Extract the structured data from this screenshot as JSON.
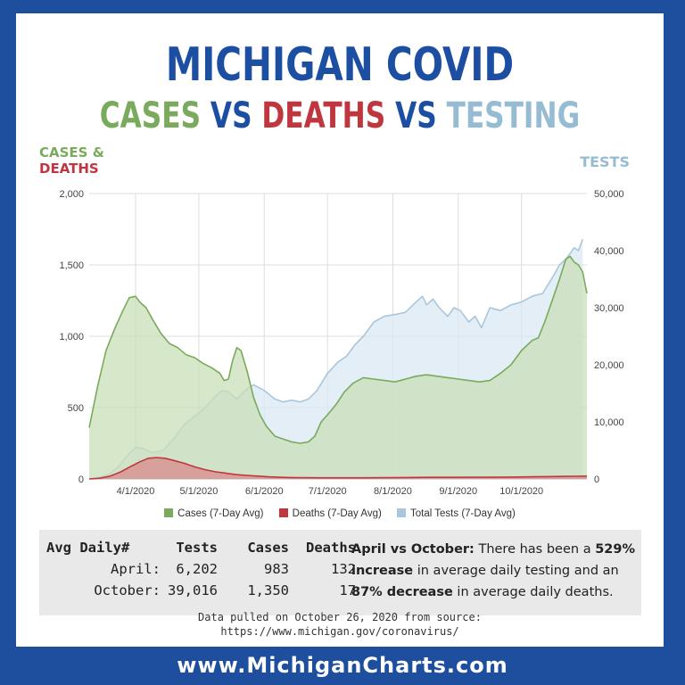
{
  "title": {
    "main": "MICHIGAN COVID",
    "sub_cases": "CASES",
    "sub_vs1": "VS",
    "sub_deaths": "DEATHS",
    "sub_vs2": "VS",
    "sub_testing": "TESTING"
  },
  "axis_titles": {
    "left_line1": "CASES &",
    "left_line2": "DEATHS",
    "right": "TESTS"
  },
  "colors": {
    "cases": "#7aaa5c",
    "cases_fill": "#c9dfb8",
    "deaths": "#c0363e",
    "deaths_fill": "#d98a8c",
    "tests": "#a9c6dd",
    "tests_fill": "#dbe8f3",
    "brand_blue": "#1c4ea2"
  },
  "chart_data": {
    "type": "area",
    "title": "MICHIGAN COVID CASES VS DEATHS VS TESTING",
    "x_start": "2020-03-10",
    "x_end": "2020-10-26",
    "x_ticks": [
      {
        "day": 22,
        "label": "4/1/2020"
      },
      {
        "day": 52,
        "label": "5/1/2020"
      },
      {
        "day": 83,
        "label": "6/1/2020"
      },
      {
        "day": 113,
        "label": "7/1/2020"
      },
      {
        "day": 144,
        "label": "8/1/2020"
      },
      {
        "day": 175,
        "label": "9/1/2020"
      },
      {
        "day": 205,
        "label": "10/1/2020"
      }
    ],
    "y_left": {
      "label": "CASES & DEATHS",
      "min": 0,
      "max": 2000,
      "ticks": [
        0,
        500,
        1000,
        1500,
        2000
      ],
      "tick_labels": [
        "0",
        "500",
        "1,000",
        "1,500",
        "2,000"
      ]
    },
    "y_right": {
      "label": "TESTS",
      "min": 0,
      "max": 50000,
      "ticks": [
        0,
        10000,
        20000,
        30000,
        40000,
        50000
      ],
      "tick_labels": [
        "0",
        "10,000",
        "20,000",
        "30,000",
        "40,000",
        "50,000"
      ]
    },
    "series": [
      {
        "name": "Total Tests (7-Day Avg)",
        "axis": "right",
        "points": [
          [
            0,
            0
          ],
          [
            5,
            300
          ],
          [
            10,
            1000
          ],
          [
            14,
            2200
          ],
          [
            18,
            4000
          ],
          [
            22,
            5600
          ],
          [
            25,
            5400
          ],
          [
            30,
            4600
          ],
          [
            35,
            5000
          ],
          [
            40,
            7000
          ],
          [
            45,
            9500
          ],
          [
            50,
            11000
          ],
          [
            55,
            12500
          ],
          [
            60,
            14500
          ],
          [
            63,
            15500
          ],
          [
            66,
            15200
          ],
          [
            70,
            14000
          ],
          [
            74,
            15500
          ],
          [
            78,
            16500
          ],
          [
            83,
            15500
          ],
          [
            88,
            14000
          ],
          [
            92,
            13500
          ],
          [
            96,
            13800
          ],
          [
            100,
            13500
          ],
          [
            104,
            14000
          ],
          [
            108,
            15500
          ],
          [
            113,
            18500
          ],
          [
            118,
            20500
          ],
          [
            122,
            21500
          ],
          [
            126,
            23500
          ],
          [
            130,
            25000
          ],
          [
            135,
            27500
          ],
          [
            140,
            28500
          ],
          [
            145,
            28800
          ],
          [
            150,
            29200
          ],
          [
            155,
            31000
          ],
          [
            158,
            32000
          ],
          [
            160,
            30500
          ],
          [
            163,
            31500
          ],
          [
            166,
            30000
          ],
          [
            170,
            28500
          ],
          [
            173,
            30000
          ],
          [
            176,
            29500
          ],
          [
            180,
            27500
          ],
          [
            183,
            28500
          ],
          [
            186,
            26500
          ],
          [
            190,
            30000
          ],
          [
            195,
            29500
          ],
          [
            200,
            30500
          ],
          [
            205,
            31000
          ],
          [
            210,
            32000
          ],
          [
            215,
            32500
          ],
          [
            220,
            35500
          ],
          [
            223,
            37500
          ],
          [
            226,
            38500
          ],
          [
            228,
            39500
          ],
          [
            230,
            40500
          ],
          [
            232,
            40000
          ],
          [
            234,
            42000
          ]
        ]
      },
      {
        "name": "Cases (7-Day Avg)",
        "axis": "left",
        "points": [
          [
            0,
            360
          ],
          [
            4,
            650
          ],
          [
            8,
            900
          ],
          [
            12,
            1050
          ],
          [
            16,
            1180
          ],
          [
            19,
            1270
          ],
          [
            22,
            1280
          ],
          [
            24,
            1240
          ],
          [
            27,
            1200
          ],
          [
            30,
            1120
          ],
          [
            34,
            1020
          ],
          [
            38,
            950
          ],
          [
            42,
            920
          ],
          [
            46,
            870
          ],
          [
            50,
            850
          ],
          [
            54,
            810
          ],
          [
            58,
            780
          ],
          [
            62,
            740
          ],
          [
            64,
            690
          ],
          [
            66,
            700
          ],
          [
            68,
            830
          ],
          [
            70,
            920
          ],
          [
            72,
            900
          ],
          [
            75,
            750
          ],
          [
            78,
            570
          ],
          [
            81,
            450
          ],
          [
            84,
            370
          ],
          [
            88,
            300
          ],
          [
            92,
            280
          ],
          [
            96,
            260
          ],
          [
            100,
            250
          ],
          [
            104,
            260
          ],
          [
            107,
            300
          ],
          [
            110,
            400
          ],
          [
            113,
            450
          ],
          [
            117,
            520
          ],
          [
            121,
            610
          ],
          [
            125,
            670
          ],
          [
            130,
            710
          ],
          [
            135,
            700
          ],
          [
            140,
            690
          ],
          [
            145,
            680
          ],
          [
            150,
            700
          ],
          [
            155,
            720
          ],
          [
            160,
            730
          ],
          [
            165,
            720
          ],
          [
            170,
            710
          ],
          [
            175,
            700
          ],
          [
            180,
            690
          ],
          [
            185,
            680
          ],
          [
            190,
            690
          ],
          [
            195,
            740
          ],
          [
            200,
            800
          ],
          [
            205,
            900
          ],
          [
            210,
            970
          ],
          [
            213,
            990
          ],
          [
            216,
            1100
          ],
          [
            220,
            1270
          ],
          [
            223,
            1400
          ],
          [
            226,
            1540
          ],
          [
            228,
            1560
          ],
          [
            230,
            1520
          ],
          [
            232,
            1500
          ],
          [
            234,
            1450
          ],
          [
            236,
            1300
          ]
        ]
      },
      {
        "name": "Deaths (7-Day Avg)",
        "axis": "left",
        "points": [
          [
            0,
            0
          ],
          [
            5,
            5
          ],
          [
            10,
            20
          ],
          [
            15,
            50
          ],
          [
            20,
            90
          ],
          [
            24,
            120
          ],
          [
            28,
            145
          ],
          [
            32,
            150
          ],
          [
            36,
            145
          ],
          [
            40,
            130
          ],
          [
            45,
            110
          ],
          [
            50,
            85
          ],
          [
            55,
            65
          ],
          [
            60,
            50
          ],
          [
            65,
            40
          ],
          [
            70,
            30
          ],
          [
            75,
            25
          ],
          [
            80,
            20
          ],
          [
            85,
            15
          ],
          [
            90,
            12
          ],
          [
            95,
            10
          ],
          [
            100,
            9
          ],
          [
            110,
            8
          ],
          [
            120,
            8
          ],
          [
            130,
            8
          ],
          [
            140,
            9
          ],
          [
            150,
            10
          ],
          [
            160,
            11
          ],
          [
            170,
            11
          ],
          [
            180,
            12
          ],
          [
            190,
            12
          ],
          [
            200,
            13
          ],
          [
            210,
            15
          ],
          [
            220,
            17
          ],
          [
            230,
            19
          ],
          [
            236,
            20
          ]
        ]
      }
    ],
    "legend": [
      {
        "label": "Cases (7-Day Avg)",
        "color": "#7aaa5c"
      },
      {
        "label": "Deaths (7-Day Avg)",
        "color": "#c0363e"
      },
      {
        "label": "Total Tests (7-Day Avg)",
        "color": "#a9c6dd"
      }
    ]
  },
  "summary": {
    "headers": [
      "Avg Daily#",
      "Tests",
      "Cases",
      "Deaths"
    ],
    "rows": [
      {
        "label": "April:",
        "tests": "6,202",
        "cases": "983",
        "deaths": "132"
      },
      {
        "label": "October:",
        "tests": "39,016",
        "cases": "1,350",
        "deaths": "17"
      }
    ],
    "note_lead": "April vs October:",
    "note_p1": " There has been a ",
    "note_b1": "529% increase",
    "note_p2": " in average daily testing and an ",
    "note_b2": "87% decrease",
    "note_p3": " in average daily deaths."
  },
  "source": {
    "line1": "Data pulled on October 26, 2020 from source:",
    "line2": "https://www.michigan.gov/coronavirus/"
  },
  "footer": "www.MichiganCharts.com"
}
